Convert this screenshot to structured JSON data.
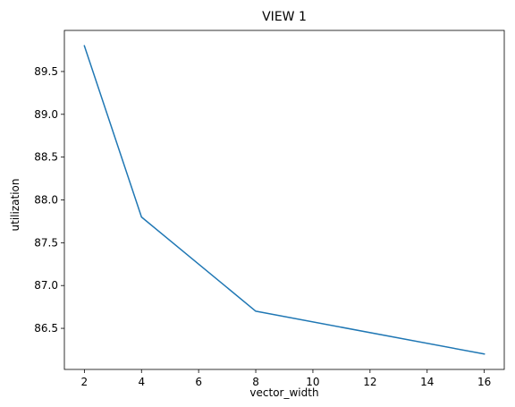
{
  "chart_data": {
    "type": "line",
    "title": "VIEW 1",
    "xlabel": "vector_width",
    "ylabel": "utilization",
    "x": [
      2,
      4,
      8,
      16
    ],
    "series": [
      {
        "values": [
          89.8,
          87.8,
          86.7,
          86.2
        ],
        "color": "#1f77b4"
      }
    ],
    "xlim": [
      1.3,
      16.7
    ],
    "ylim": [
      86.02,
      89.98
    ],
    "xticks": [
      2,
      4,
      6,
      8,
      10,
      12,
      14,
      16
    ],
    "xtick_labels": [
      "2",
      "4",
      "6",
      "8",
      "10",
      "12",
      "14",
      "16"
    ],
    "yticks": [
      86.5,
      87.0,
      87.5,
      88.0,
      88.5,
      89.0,
      89.5
    ],
    "ytick_labels": [
      "86.5",
      "87.0",
      "87.5",
      "88.0",
      "88.5",
      "89.0",
      "89.5"
    ],
    "grid": false,
    "legend": "none"
  }
}
